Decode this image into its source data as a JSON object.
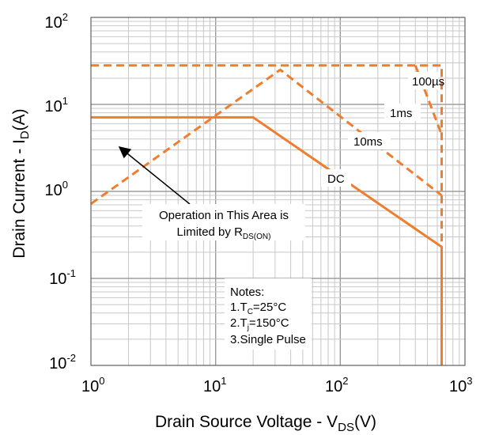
{
  "chart_data": {
    "type": "line",
    "title": "",
    "xlabel": {
      "main": "Drain Source Voltage - V",
      "sub": "DS",
      "tail": "(V)"
    },
    "ylabel": {
      "main": "Drain Current - I",
      "sub": "D",
      "tail": "(A)"
    },
    "xscale": "log",
    "yscale": "log",
    "xlim": [
      1,
      1000
    ],
    "ylim": [
      0.01,
      100
    ],
    "grid": true,
    "x_ticks": [
      {
        "base": "10",
        "exp": "0"
      },
      {
        "base": "10",
        "exp": "1"
      },
      {
        "base": "10",
        "exp": "2"
      },
      {
        "base": "10",
        "exp": "3"
      }
    ],
    "y_ticks": [
      {
        "base": "10",
        "exp": "2"
      },
      {
        "base": "10",
        "exp": "1"
      },
      {
        "base": "10",
        "exp": "0"
      },
      {
        "base": "10",
        "exp": "-1"
      },
      {
        "base": "10",
        "exp": "-2"
      }
    ],
    "series": [
      {
        "name": "100µs",
        "style": "dashed",
        "color": "#f07d2e",
        "points": [
          [
            1,
            28
          ],
          [
            650,
            28
          ],
          [
            650,
            0.01
          ]
        ]
      },
      {
        "name": "1ms",
        "style": "dashed",
        "color": "#f07d2e",
        "points": [
          [
            400,
            28
          ],
          [
            650,
            4.5
          ]
        ]
      },
      {
        "name": "10ms",
        "style": "dashed",
        "color": "#f07d2e",
        "points": [
          [
            1,
            0.72
          ],
          [
            33,
            25
          ],
          [
            650,
            0.9
          ]
        ]
      },
      {
        "name": "DC",
        "style": "solid",
        "color": "#f07d2e",
        "points": [
          [
            1,
            7.1
          ],
          [
            20,
            7.1
          ],
          [
            650,
            0.23
          ],
          [
            650,
            0.01
          ]
        ]
      }
    ],
    "annotations": {
      "limit_text_line1": "Operation in This Area is",
      "limit_text_line2_main": "Limited by R",
      "limit_text_line2_sub": "DS(ON)",
      "notes_title": "Notes:",
      "note1_main": "1.T",
      "note1_sub": "C",
      "note1_tail": "=25°C",
      "note2_main": "2.T",
      "note2_sub": "j",
      "note2_tail": "=150°C",
      "note3": "3.Single Pulse"
    }
  }
}
